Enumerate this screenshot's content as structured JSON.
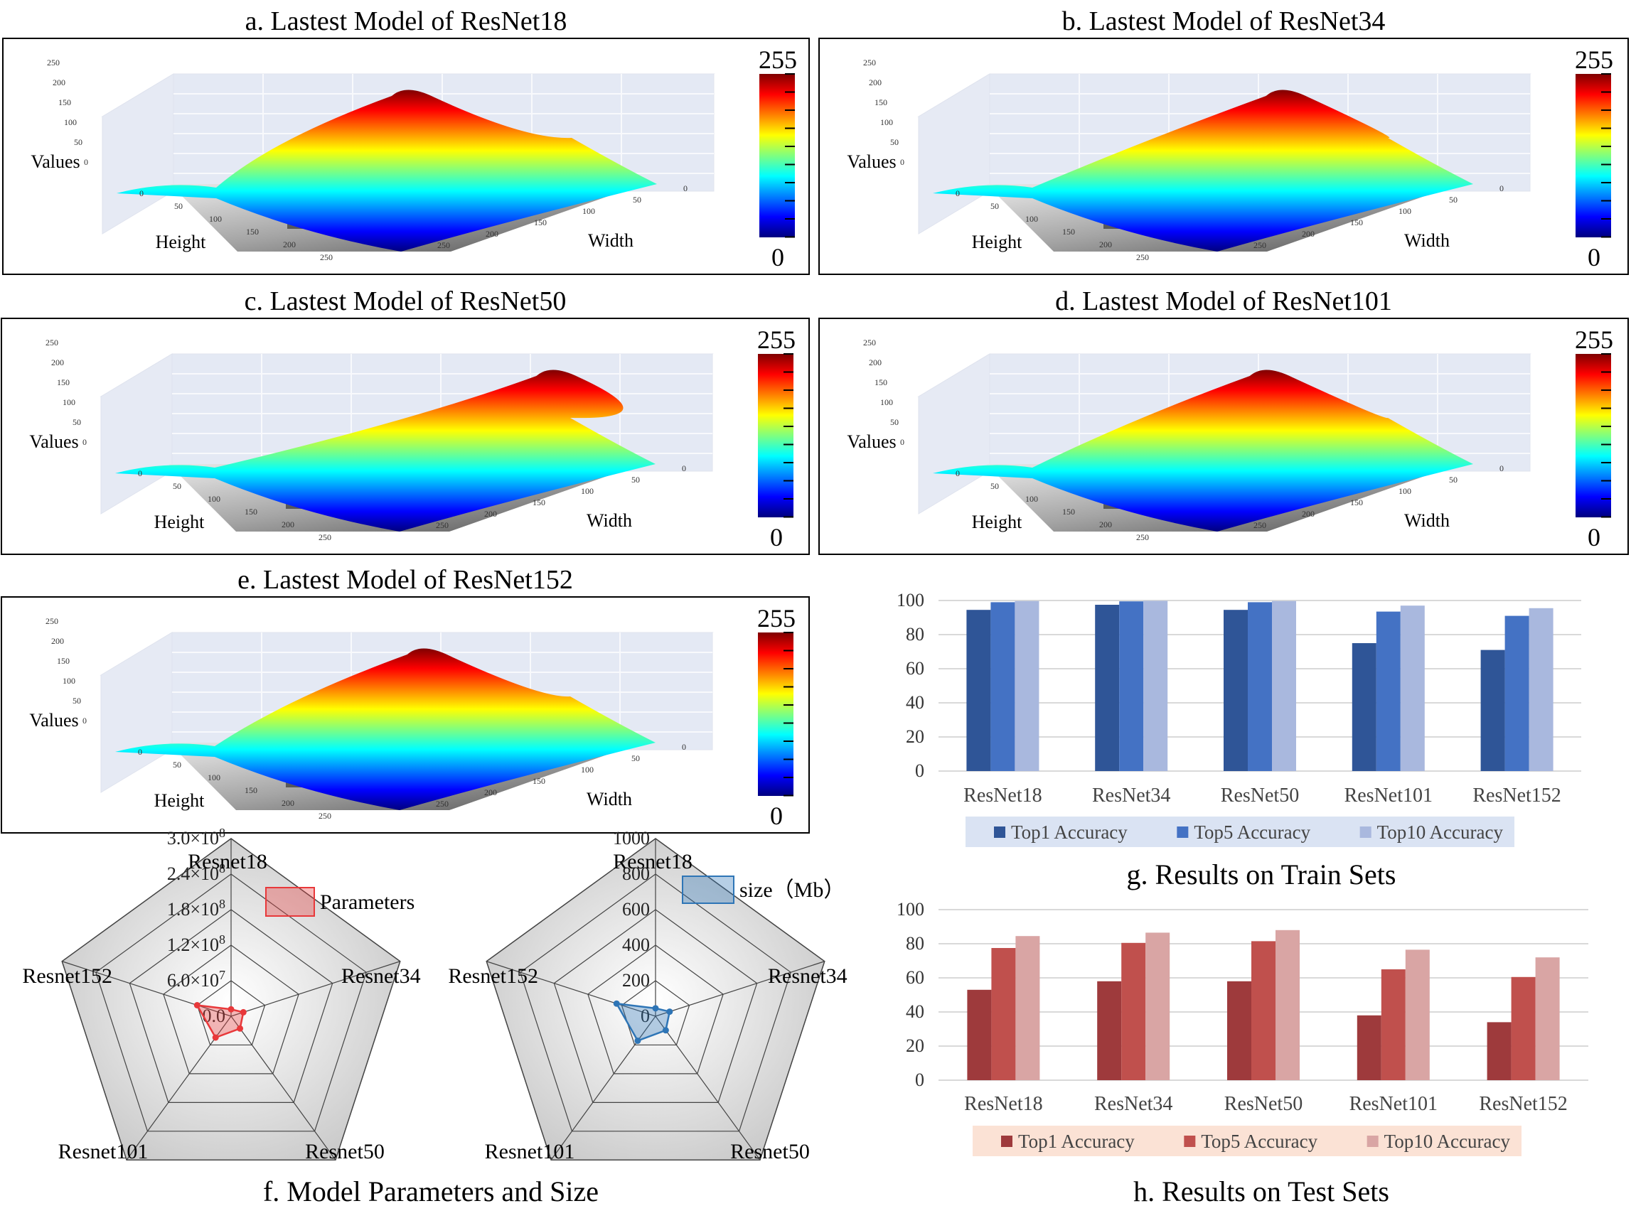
{
  "surface_panels": [
    {
      "title": "a. Lastest Model of ResNet18",
      "colorbar": {
        "max": "255",
        "min": "0"
      },
      "axes": {
        "values": "Values",
        "height": "Height",
        "width": "Width"
      }
    },
    {
      "title": "b. Lastest Model of ResNet34",
      "colorbar": {
        "max": "255",
        "min": "0"
      },
      "axes": {
        "values": "Values",
        "height": "Height",
        "width": "Width"
      }
    },
    {
      "title": "c. Lastest Model of ResNet50",
      "colorbar": {
        "max": "255",
        "min": "0"
      },
      "axes": {
        "values": "Values",
        "height": "Height",
        "width": "Width"
      }
    },
    {
      "title": "d. Lastest Model of ResNet101",
      "colorbar": {
        "max": "255",
        "min": "0"
      },
      "axes": {
        "values": "Values",
        "height": "Height",
        "width": "Width"
      }
    },
    {
      "title": "e. Lastest Model of ResNet152",
      "colorbar": {
        "max": "255",
        "min": "0"
      },
      "axes": {
        "values": "Values",
        "height": "Height",
        "width": "Width"
      }
    }
  ],
  "surface_ticks": {
    "values": [
      "0",
      "50",
      "100",
      "150",
      "200",
      "250"
    ],
    "height": [
      "0",
      "50",
      "100",
      "150",
      "200",
      "250"
    ],
    "width": [
      "0",
      "50",
      "100",
      "150",
      "200",
      "250"
    ]
  },
  "colorscale": [
    "#00007f",
    "#0000ff",
    "#007fff",
    "#00ffff",
    "#7fff7f",
    "#ffff00",
    "#ff7f00",
    "#ff0000",
    "#7f0000"
  ],
  "caption_f": "f. Model Parameters and Size",
  "caption_g": "g. Results on Train Sets",
  "caption_h": "h. Results on Test Sets",
  "chart_data": [
    {
      "id": "radar-params",
      "type": "radar",
      "axes": [
        "Resnet18",
        "Resnet34",
        "Resnet50",
        "Resnet101",
        "Resnet152"
      ],
      "ticks": [
        "0.0",
        "6.0×10⁷",
        "1.2×10⁸",
        "1.8×10⁸",
        "2.4×10⁸",
        "3.0×10⁸"
      ],
      "range": [
        0,
        300000000
      ],
      "series": [
        {
          "name": "Parameters",
          "values": [
            11700000,
            21800000,
            25600000,
            44500000,
            60200000
          ],
          "color": "#e8383a"
        }
      ]
    },
    {
      "id": "radar-size",
      "type": "radar",
      "axes": [
        "Resnet18",
        "Resnet34",
        "Resnet50",
        "Resnet101",
        "Resnet152"
      ],
      "ticks": [
        "0",
        "200",
        "400",
        "600",
        "800",
        "1000"
      ],
      "range": [
        0,
        1000
      ],
      "series": [
        {
          "name": "size（Mb）",
          "values": [
            44.7,
            83.3,
            97.8,
            170.5,
            230.4
          ],
          "color": "#2e75b6"
        }
      ]
    },
    {
      "id": "bar-train",
      "type": "bar",
      "categories": [
        "ResNet18",
        "ResNet34",
        "ResNet50",
        "ResNet101",
        "ResNet152"
      ],
      "ylim": [
        0,
        100
      ],
      "yticks": [
        "0",
        "20",
        "40",
        "60",
        "80",
        "100"
      ],
      "series": [
        {
          "name": "Top1 Accuracy",
          "values": [
            94.5,
            97.5,
            94.5,
            75,
            71
          ],
          "color": "#2f5597"
        },
        {
          "name": "Top5 Accuracy",
          "values": [
            99,
            99.5,
            99,
            93.5,
            91
          ],
          "color": "#4472c4"
        },
        {
          "name": "Top10 Accuracy",
          "values": [
            99.7,
            99.8,
            99.7,
            97,
            95.5
          ],
          "color": "#a9b8de"
        }
      ]
    },
    {
      "id": "bar-test",
      "type": "bar",
      "categories": [
        "ResNet18",
        "ResNet34",
        "ResNet50",
        "ResNet101",
        "ResNet152"
      ],
      "ylim": [
        0,
        100
      ],
      "yticks": [
        "0",
        "20",
        "40",
        "60",
        "80",
        "100"
      ],
      "series": [
        {
          "name": "Top1 Accuracy",
          "values": [
            53,
            58,
            58,
            38,
            34
          ],
          "color": "#9e3a3c"
        },
        {
          "name": "Top5 Accuracy",
          "values": [
            77.5,
            80.5,
            81.5,
            65,
            60.5
          ],
          "color": "#c0504d"
        },
        {
          "name": "Top10 Accuracy",
          "values": [
            84.5,
            86.5,
            88,
            76.5,
            72
          ],
          "color": "#d9a5a4"
        }
      ]
    }
  ]
}
